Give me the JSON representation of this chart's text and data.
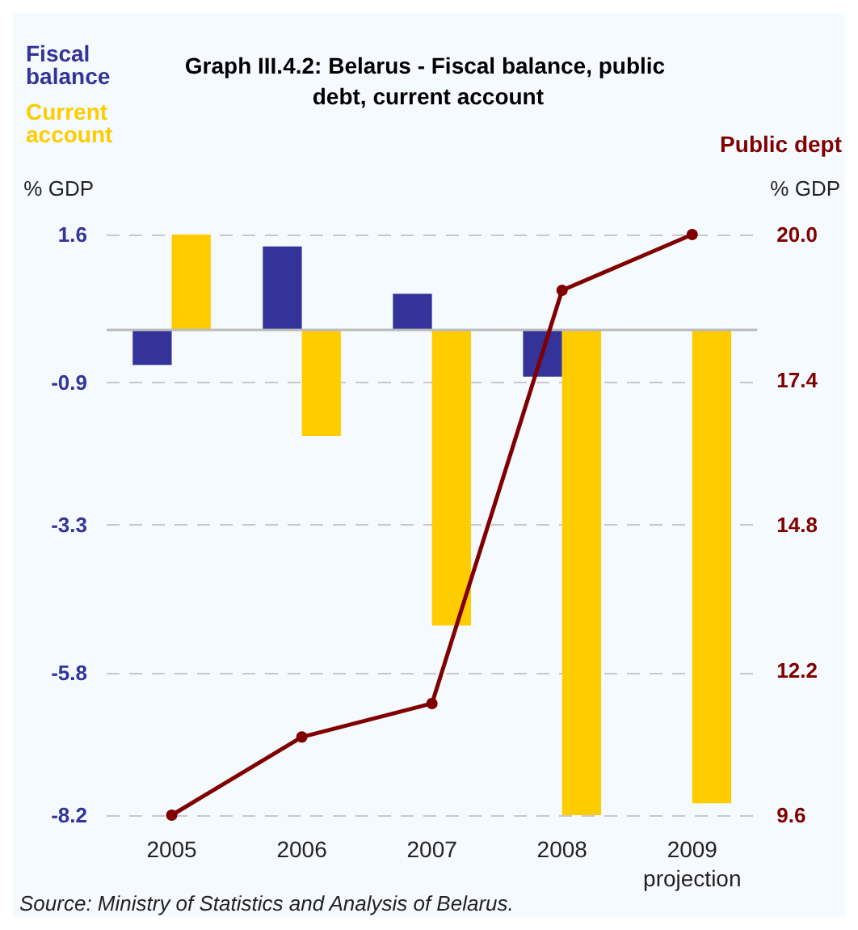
{
  "chart_data": {
    "type": "bar",
    "title": "Graph III.4.2: Belarus - Fiscal balance, public debt, current account",
    "categories": [
      "2005",
      "2006",
      "2007",
      "2008",
      "2009\nprojection"
    ],
    "series": [
      {
        "name": "Fiscal balance",
        "color": "#333399",
        "values": [
          -0.6,
          1.4,
          0.6,
          -0.8,
          null
        ]
      },
      {
        "name": "Current account",
        "color": "#ffcc00",
        "values": [
          1.6,
          -1.8,
          -5.0,
          -8.2,
          -8.0
        ]
      },
      {
        "name": "Public dept",
        "type": "line",
        "axis": "y2",
        "color": "#800000",
        "values": [
          9.6,
          11.0,
          11.6,
          19.0,
          20.0
        ]
      }
    ],
    "ylabel": "% GDP",
    "y2label": "% GDP",
    "ylim": [
      -8.2,
      1.6
    ],
    "yticks": [
      1.6,
      -0.9,
      -3.3,
      -5.8,
      -8.2
    ],
    "y2lim": [
      9.6,
      20.0
    ],
    "y2ticks": [
      {
        "value": 20,
        "label": "20.0"
      },
      17.4,
      14.8,
      12.2,
      9.6
    ],
    "grid": "y",
    "marker": "circle",
    "annotations": [
      "Source: Ministry of Statistics and Analysis of Belarus."
    ]
  }
}
